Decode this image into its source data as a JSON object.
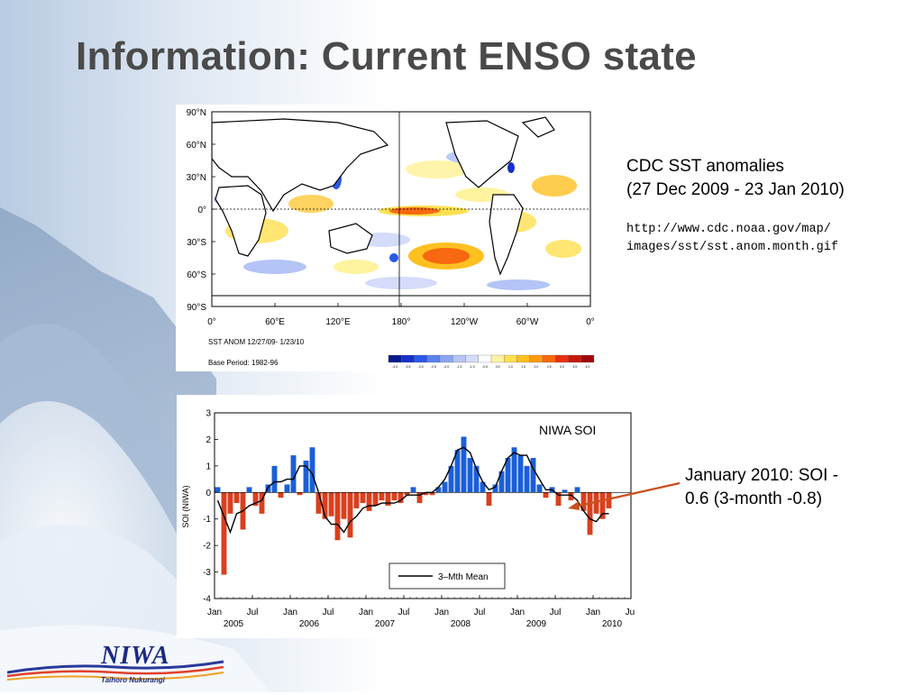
{
  "slide": {
    "title": "Information: Current ENSO state"
  },
  "sst_map": {
    "lat_labels": [
      "90°N",
      "60°N",
      "30°N",
      "0°",
      "30°S",
      "60°S",
      "90°S"
    ],
    "lon_labels": [
      "0°",
      "60°E",
      "120°E",
      "180°",
      "120°W",
      "60°W",
      "0°"
    ],
    "anom_label": "SST ANOM 12/27/09- 1/23/10",
    "base_label": "Base Period: 1982-96",
    "colorbar_labels": [
      "-4.0",
      "-3.5",
      "-3.0",
      "-2.5",
      "-2.0",
      "-1.5",
      "-1.0",
      "-0.5",
      "0.5",
      "1.0",
      "1.5",
      "2.0",
      "2.5",
      "3.0",
      "3.5",
      "4.0"
    ],
    "colorbar_colors": [
      "#0a1a8c",
      "#1630c8",
      "#2a58e8",
      "#5a82f0",
      "#8aa6f2",
      "#b4c4f6",
      "#d4dcfa",
      "#ffffff",
      "#fff3a0",
      "#ffe050",
      "#ffc020",
      "#ff9a10",
      "#f86810",
      "#e83010",
      "#c81808",
      "#a00808"
    ]
  },
  "sst_caption": {
    "line1": "CDC SST anomalies",
    "line2": "(27 Dec 2009 - 23 Jan 2010)",
    "url1": "http://www.cdc.noaa.gov/map/",
    "url2": "images/sst/sst.anom.month.gif"
  },
  "soi_caption": {
    "line1": "January 2010: SOI -",
    "line2": "0.6 (3-month -0.8)"
  },
  "logo": {
    "name": "NIWA",
    "tagline": "Taihoro Nukurangi"
  },
  "colors": {
    "positive_bar": "#1a5fd8",
    "negative_bar": "#d8401e",
    "arrow": "#c8501e",
    "title": "#4a4a4a"
  },
  "chart_data": {
    "type": "bar",
    "title": "NIWA SOI",
    "ylabel": "SOI (NIWA)",
    "ylim": [
      -4,
      3
    ],
    "yticks": [
      3,
      2,
      1,
      0,
      -1,
      -2,
      -3,
      -4
    ],
    "x_start": "2005-01",
    "x_end": "2010-07",
    "x_tick_labels": [
      "Jan",
      "Jul",
      "Jan",
      "Jul",
      "Jan",
      "Jul",
      "Jan",
      "Jul",
      "Jan",
      "Jul",
      "Jan",
      "Jul"
    ],
    "year_labels": [
      "2005",
      "2006",
      "2007",
      "2008",
      "2009",
      "2010"
    ],
    "legend": "3–Mth Mean",
    "legend_position": "bottom-right",
    "grid": false,
    "series": [
      {
        "name": "SOI",
        "type": "bar",
        "values": [
          0.2,
          -3.1,
          -0.8,
          -0.4,
          -1.4,
          0.2,
          -0.5,
          -0.8,
          0.3,
          1.0,
          -0.2,
          0.3,
          1.4,
          -0.1,
          1.2,
          1.7,
          -0.8,
          -1.0,
          -0.9,
          -1.8,
          -1.0,
          -1.7,
          -0.6,
          -0.4,
          -0.7,
          -0.5,
          -0.3,
          -0.5,
          -0.3,
          -0.4,
          -0.1,
          0.2,
          -0.4,
          -0.1,
          -0.1,
          0.2,
          0.4,
          1.0,
          1.6,
          2.1,
          1.3,
          1.0,
          0.4,
          -0.5,
          0.3,
          0.8,
          1.3,
          1.7,
          1.4,
          1.0,
          1.3,
          0.3,
          -0.2,
          0.2,
          -0.5,
          0.1,
          -0.3,
          0.2,
          -0.7,
          -1.6,
          -0.8,
          -1.0,
          -0.6
        ]
      },
      {
        "name": "3–Mth Mean",
        "type": "line",
        "values": [
          -0.3,
          -0.9,
          -1.5,
          -0.8,
          -0.7,
          -0.5,
          -0.4,
          -0.3,
          0.2,
          0.4,
          0.4,
          0.5,
          0.5,
          1.0,
          1.0,
          0.7,
          0.0,
          -0.9,
          -1.2,
          -1.2,
          -1.5,
          -1.1,
          -0.9,
          -0.6,
          -0.5,
          -0.5,
          -0.4,
          -0.4,
          -0.4,
          -0.3,
          -0.1,
          -0.1,
          -0.1,
          0.0,
          0.0,
          0.2,
          0.5,
          1.0,
          1.6,
          1.7,
          1.5,
          0.9,
          0.4,
          0.1,
          0.2,
          0.8,
          1.3,
          1.5,
          1.4,
          1.4,
          0.9,
          0.5,
          0.1,
          0.1,
          -0.1,
          -0.1,
          -0.1,
          -0.3,
          -0.7,
          -1.0,
          -1.1,
          -0.8,
          -0.8
        ]
      }
    ]
  }
}
